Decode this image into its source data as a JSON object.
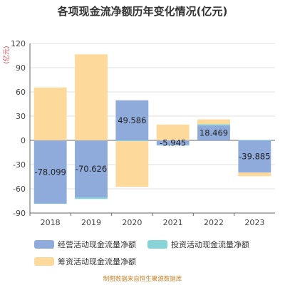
{
  "chart_data": {
    "type": "bar",
    "stacked": true,
    "title": "各项现金流净额历年变化情况(亿元)",
    "unit_label": "(亿元)",
    "source": "制图数据来自恒生聚源数据库",
    "categories": [
      "2018",
      "2019",
      "2020",
      "2021",
      "2022",
      "2023"
    ],
    "ylim": [
      -90,
      120
    ],
    "yticks": [
      -90,
      -60,
      -30,
      0,
      30,
      60,
      90,
      120
    ],
    "grid": true,
    "legend_position": "bottom",
    "series": [
      {
        "name": "经营活动现金流量净额",
        "color": "#8fabdb",
        "values": [
          -78.099,
          -70.626,
          49.586,
          -5.945,
          18.469,
          -39.885
        ],
        "labels": [
          "-78.099",
          "-70.626",
          "49.586",
          "-5.945",
          "18.469",
          "-39.885"
        ]
      },
      {
        "name": "投资活动现金流量净额",
        "color": "#87d3d8",
        "values": [
          -0.5,
          -2.0,
          -1.0,
          -0.5,
          1.5,
          0.5
        ]
      },
      {
        "name": "筹资活动现金流量净额",
        "color": "#fdd99b",
        "values": [
          65.5,
          106.5,
          -56.5,
          19.5,
          6.0,
          -4.5
        ]
      }
    ]
  }
}
